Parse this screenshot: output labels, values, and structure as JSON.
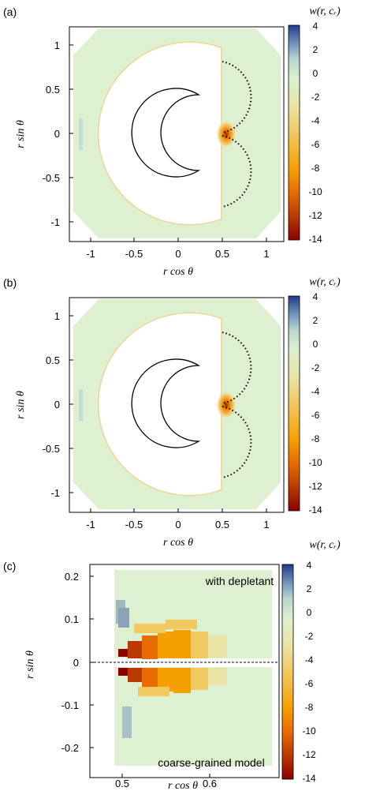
{
  "colorbar": {
    "label": "w(r, c_r)",
    "ticks": [
      4,
      2,
      0,
      -2,
      -4,
      -6,
      -8,
      -10,
      -12,
      -14
    ],
    "range": [
      -14,
      4
    ],
    "colors": [
      "#8b0000",
      "#b83a00",
      "#e86b00",
      "#f5a000",
      "#f2c860",
      "#e9e3a4",
      "#ddf0cf",
      "#b9d7cf",
      "#6f8fb8",
      "#1f3b8c"
    ]
  },
  "chart_data": [
    {
      "panel": "(a)",
      "type": "heatmap",
      "xlabel": "r cos θ",
      "ylabel": "r sin θ",
      "xlim": [
        -1.2,
        1.2
      ],
      "ylim": [
        -1.2,
        1.2
      ],
      "xticks": [
        "-1",
        "-0.5",
        "0",
        "0.5",
        "1"
      ],
      "yticks": [
        "1",
        "0.5",
        "0",
        "-0.5",
        "-1"
      ],
      "min_value": -14
    },
    {
      "panel": "(b)",
      "type": "heatmap",
      "xlabel": "r cos θ",
      "ylabel": "r sin θ",
      "xlim": [
        -1.2,
        1.2
      ],
      "ylim": [
        -1.2,
        1.2
      ],
      "xticks": [
        "-1",
        "-0.5",
        "0",
        "0.5",
        "1"
      ],
      "yticks": [
        "1",
        "0.5",
        "0",
        "-0.5",
        "-1"
      ],
      "min_value": -14
    },
    {
      "panel": "(c)",
      "type": "heatmap",
      "xlabel": "r cos θ",
      "ylabel": "r sin θ",
      "xlim": [
        0.46,
        0.67
      ],
      "ylim": [
        -0.22,
        0.22
      ],
      "xticks": [
        "0.5",
        "0.6"
      ],
      "yticks": [
        "0.2",
        "0.1",
        "0",
        "-0.1",
        "-0.2"
      ],
      "annotations": [
        "with depletant",
        "coarse-grained model"
      ]
    }
  ]
}
